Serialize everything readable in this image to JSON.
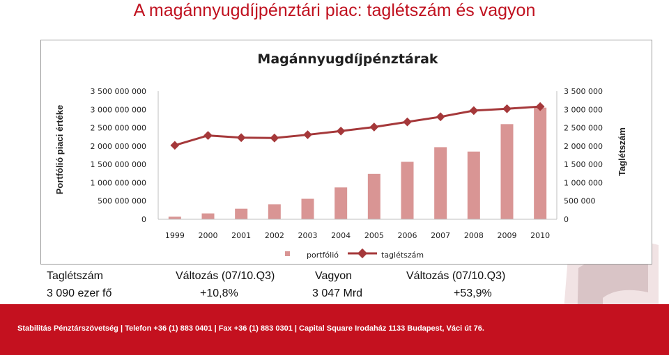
{
  "slide_title": "A magánnyugdíjpénztári piac: taglétszám és vagyon",
  "chart_data": {
    "type": "bar",
    "title": "Magánnyugdíjpénztárak",
    "categories": [
      "1999",
      "2000",
      "2001",
      "2002",
      "2003",
      "2004",
      "2005",
      "2006",
      "2007",
      "2008",
      "2009",
      "2010"
    ],
    "series": [
      {
        "name": "portfólió",
        "type": "bar",
        "axis": "left",
        "color": "#d99594",
        "values": [
          70000000,
          160000000,
          290000000,
          410000000,
          560000000,
          870000000,
          1240000000,
          1570000000,
          1970000000,
          1850000000,
          2600000000,
          3050000000
        ]
      },
      {
        "name": "taglétszám",
        "type": "line",
        "axis": "right",
        "color": "#a5383a",
        "values": [
          2020000,
          2290000,
          2230000,
          2220000,
          2310000,
          2410000,
          2520000,
          2660000,
          2800000,
          2970000,
          3020000,
          3080000
        ]
      }
    ],
    "ylabel_left": "Portfólió piaci értéke",
    "ylabel_right": "Taglétszám",
    "ylim_left": [
      0,
      3500000000
    ],
    "ylim_right": [
      0,
      3500000
    ],
    "yticks_left": [
      "0",
      "500 000 000",
      "1 000 000 000",
      "1 500 000 000",
      "2 000 000 000",
      "2 500 000 000",
      "3 000 000 000",
      "3 500 000 000"
    ],
    "yticks_right": [
      "0",
      "500 000",
      "1 000 000",
      "1 500 000",
      "2 000 000",
      "2 500 000",
      "3 000 000",
      "3 500 000"
    ],
    "grid": false,
    "legend_position": "bottom"
  },
  "stats": {
    "members_label": "Taglétszám",
    "members_change_label": "Változás (07/10.Q3)",
    "assets_label": "Vagyon",
    "assets_change_label": "Változás (07/10.Q3)",
    "members_value": "3 090 ezer fő",
    "members_change": "+10,8%",
    "assets_value": "3 047 Mrd",
    "assets_change": "+53,9%"
  },
  "footer": "Stabilitás Pénztárszövetség | Telefon +36 (1) 883 0401 | Fax +36 (1) 883 0301 | Capital Square Irodaház 1133 Budapest, Váci út 76.",
  "colors": {
    "brand_red": "#c4111f",
    "title_red": "#c0111f",
    "bar": "#d99594",
    "line": "#a5383a"
  }
}
